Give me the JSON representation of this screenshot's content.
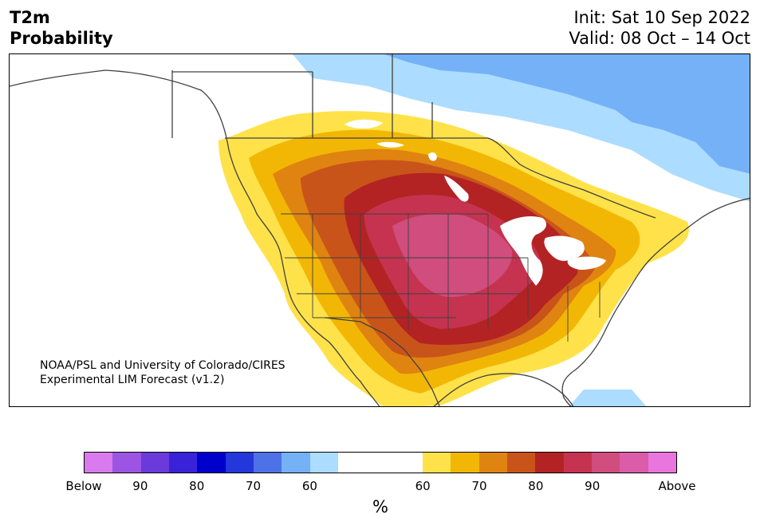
{
  "header": {
    "title_line1": "T2m",
    "title_line2": "Probability",
    "init": "Init: Sat 10 Sep 2022",
    "valid": "Valid: 08 Oct – 14 Oct"
  },
  "credit": {
    "line1": "NOAA/PSL and University of Colorado/CIRES",
    "line2": "Experimental LIM Forecast (v1.2)"
  },
  "map": {
    "region": "North America",
    "feature": "Above-normal 2-m temperature probability centered over the central United States",
    "fill_colors": {
      "above_50_60": "#ffe24a",
      "above_60_65": "#f2b705",
      "above_65_70": "#df8410",
      "above_70_75": "#c9541a",
      "above_75_80": "#b32323",
      "above_80_85": "#c53350",
      "above_85_90": "#d04d7d",
      "below_50_60": "#acdcff",
      "below_60_65": "#74b1f7"
    }
  },
  "colorbar": {
    "segments": [
      {
        "color": "#d97aee"
      },
      {
        "color": "#9c55e3"
      },
      {
        "color": "#6a3adb"
      },
      {
        "color": "#3a22d8"
      },
      {
        "color": "#0000cc"
      },
      {
        "color": "#2437db"
      },
      {
        "color": "#4d72e8"
      },
      {
        "color": "#74b1f7"
      },
      {
        "color": "#acdcff"
      },
      {
        "color": "#ffffff",
        "wide": true
      },
      {
        "color": "#ffe24a"
      },
      {
        "color": "#f2b705"
      },
      {
        "color": "#df8410"
      },
      {
        "color": "#c9541a"
      },
      {
        "color": "#b32323"
      },
      {
        "color": "#c53350"
      },
      {
        "color": "#d04d7d"
      },
      {
        "color": "#db5ca8"
      },
      {
        "color": "#e876de"
      }
    ],
    "tick_labels": [
      "Below",
      "90",
      "80",
      "70",
      "60",
      "60",
      "70",
      "80",
      "90",
      "Above"
    ],
    "unit": "%"
  }
}
